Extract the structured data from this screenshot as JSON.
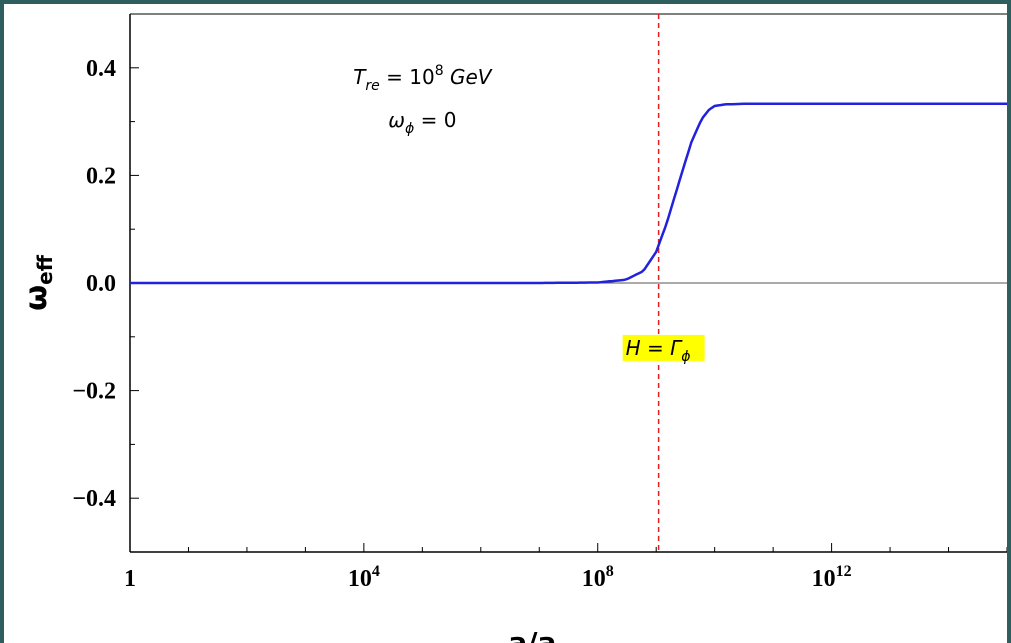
{
  "chart_data": {
    "type": "line",
    "xscale": "log10",
    "xlim": [
      1,
      1000000000000000.0
    ],
    "ylim": [
      -0.5,
      0.5
    ],
    "xlabel": "a/a_T",
    "ylabel": "ω_eff",
    "x_ticks": [
      {
        "value": 1,
        "label": "1"
      },
      {
        "value": 10000.0,
        "label": "10",
        "exp": "4"
      },
      {
        "value": 100000000.0,
        "label": "10",
        "exp": "8"
      },
      {
        "value": 1000000000000.0,
        "label": "10",
        "exp": "12"
      }
    ],
    "y_ticks": [
      {
        "value": 0.4,
        "label": "0.4"
      },
      {
        "value": 0.2,
        "label": "0.2"
      },
      {
        "value": 0.0,
        "label": "0.0"
      },
      {
        "value": -0.2,
        "label": "−0.2"
      },
      {
        "value": -0.4,
        "label": "−0.4"
      }
    ],
    "series": [
      {
        "color": "#2222dd",
        "x": [
          1,
          100.0,
          10000.0,
          1000000.0,
          10000000.0,
          100000000.0,
          300000000.0,
          600000000.0,
          1000000000.0,
          1500000000.0,
          2500000000.0,
          4000000000.0,
          6000000000.0,
          8000000000.0,
          10000000000.0,
          15000000000.0,
          30000000000.0,
          100000000000.0,
          1000000000000.0,
          10000000000000.0,
          100000000000000.0,
          1000000000000000.0
        ],
        "y": [
          0,
          0,
          0,
          0,
          0,
          0.001,
          0.006,
          0.022,
          0.058,
          0.11,
          0.19,
          0.262,
          0.305,
          0.322,
          0.329,
          0.332,
          0.333,
          0.333,
          0.333,
          0.333,
          0.333,
          0.333
        ]
      }
    ],
    "reference_lines": [
      {
        "orientation": "horizontal",
        "value": 0,
        "color": "#555555",
        "style": "solid"
      },
      {
        "orientation": "vertical",
        "value": 1100000000.0,
        "color": "#e02020",
        "style": "dashed",
        "label": "H = Γ",
        "label_sub": "ϕ",
        "label_y": -0.13,
        "label_bg": "#ffff00"
      }
    ],
    "annotations": [
      {
        "line": "T",
        "sub": "re",
        "rest": " = 10",
        "sup": "8",
        "tail": " GeV",
        "x": 100000.0,
        "y": 0.37
      },
      {
        "line": "ω",
        "sub": "ϕ",
        "rest": " = 0",
        "sup": "",
        "tail": "",
        "x": 100000.0,
        "y": 0.29
      }
    ],
    "grid": false,
    "legend": "none"
  }
}
